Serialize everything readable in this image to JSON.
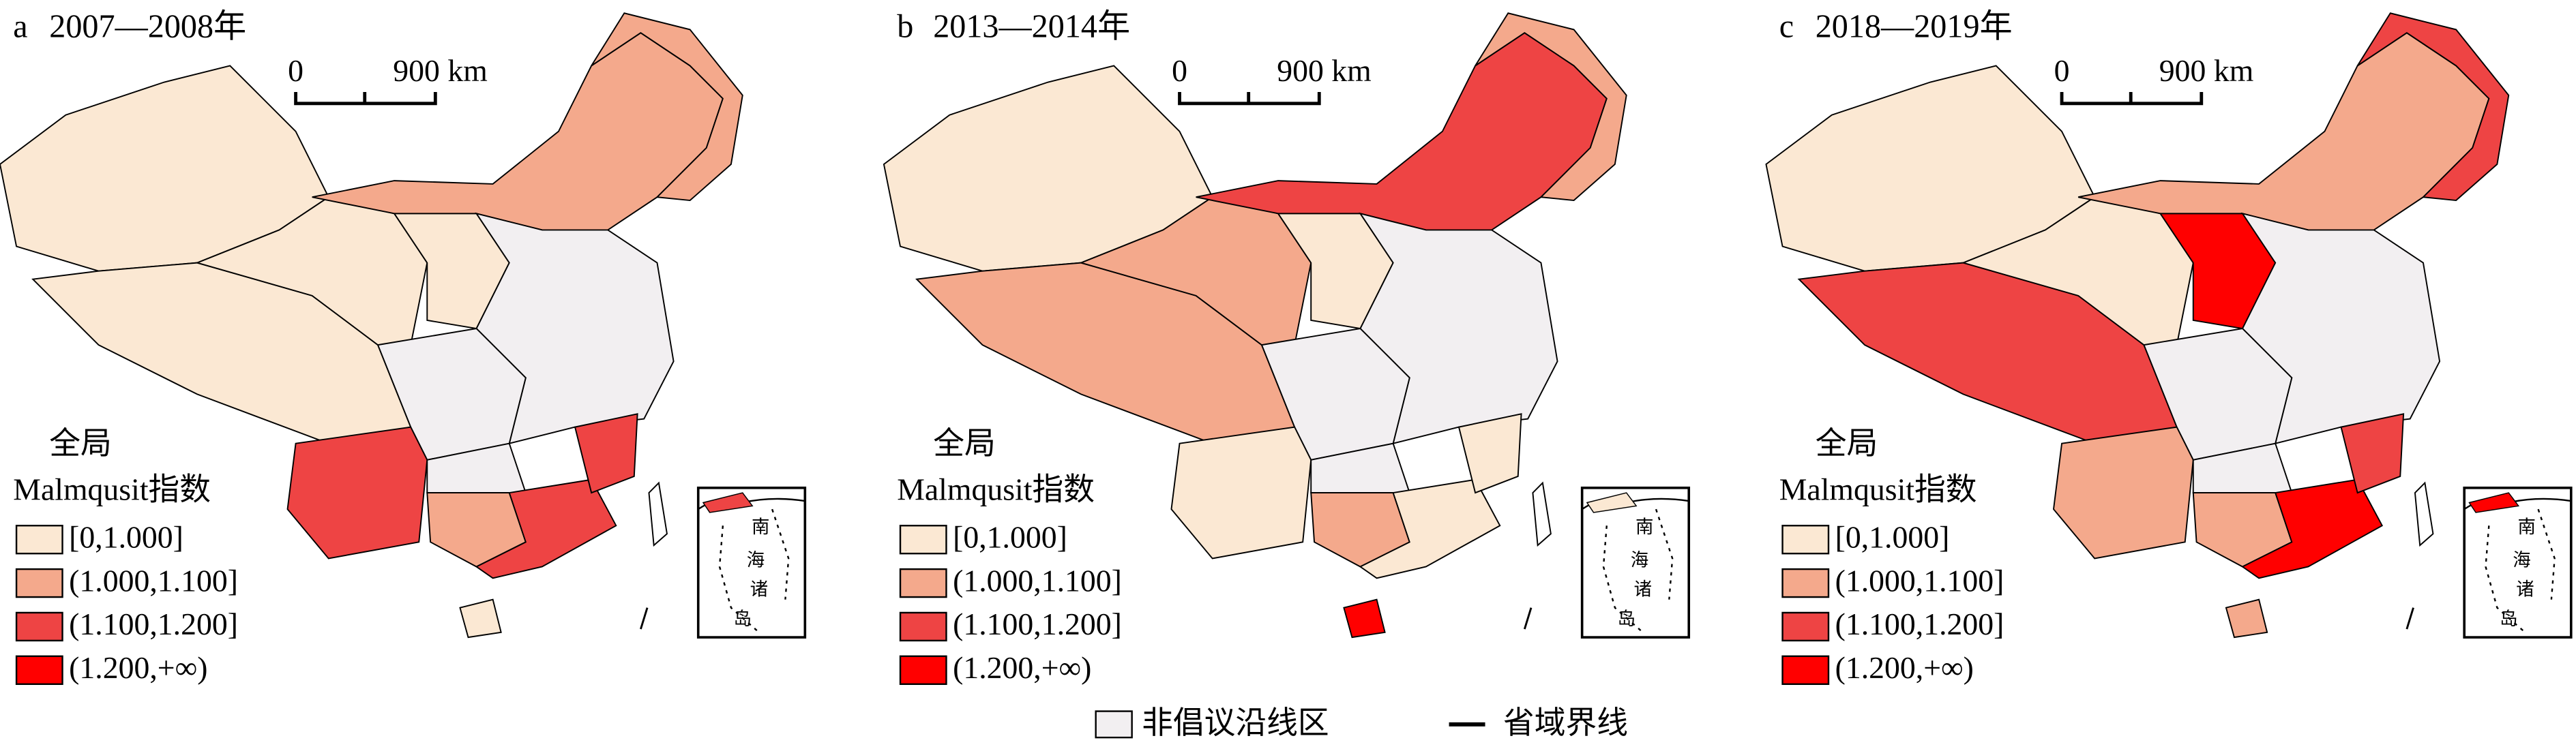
{
  "panels": [
    {
      "label": "a",
      "period": "2007—2008年",
      "scale": {
        "zero": "0",
        "distance": "900 km"
      },
      "legend": {
        "title": "全局",
        "subtitle": "Malmqusit指数",
        "items": [
          {
            "label": "[0,1.000]",
            "color": "#fbe8d3"
          },
          {
            "label": "(1.000,1.100]",
            "color": "#f4a98c"
          },
          {
            "label": "(1.100,1.200]",
            "color": "#ee4444"
          },
          {
            "label": "(1.200,+∞)",
            "color": "#ff0000"
          }
        ]
      },
      "inset": [
        "南",
        "海",
        "诸",
        "岛"
      ]
    },
    {
      "label": "b",
      "period": "2013—2014年",
      "scale": {
        "zero": "0",
        "distance": "900 km"
      },
      "legend": {
        "title": "全局",
        "subtitle": "Malmqusit指数",
        "items": [
          {
            "label": "[0,1.000]",
            "color": "#fbe8d3"
          },
          {
            "label": "(1.000,1.100]",
            "color": "#f4a98c"
          },
          {
            "label": "(1.100,1.200]",
            "color": "#ee4444"
          },
          {
            "label": "(1.200,+∞)",
            "color": "#ff0000"
          }
        ]
      },
      "inset": [
        "南",
        "海",
        "诸",
        "岛"
      ]
    },
    {
      "label": "c",
      "period": "2018—2019年",
      "scale": {
        "zero": "0",
        "distance": "900 km"
      },
      "legend": {
        "title": "全局",
        "subtitle": "Malmqusit指数",
        "items": [
          {
            "label": "[0,1.000]",
            "color": "#fbe8d3"
          },
          {
            "label": "(1.000,1.100]",
            "color": "#f4a98c"
          },
          {
            "label": "(1.100,1.200]",
            "color": "#ee4444"
          },
          {
            "label": "(1.200,+∞)",
            "color": "#ff0000"
          }
        ]
      },
      "inset": [
        "南",
        "海",
        "诸",
        "岛"
      ]
    }
  ],
  "footer": {
    "items": [
      {
        "label": "非倡议沿线区",
        "color": "#f2eff1"
      },
      {
        "label": "省域界线"
      }
    ]
  }
}
